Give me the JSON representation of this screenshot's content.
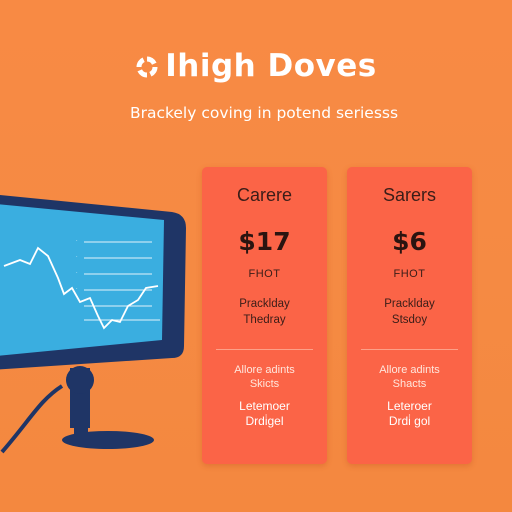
{
  "header": {
    "logo_icon": "ring-logo-icon",
    "title": "Ihigh Doves",
    "tagline": "Brackely coving in potend seriesss"
  },
  "plans": [
    {
      "name": "Carere",
      "price": "$17",
      "period": "FHOT",
      "features_a": [
        "Pracklday",
        "Thedray"
      ],
      "features_b": [
        "Allore adints",
        "Skicts"
      ],
      "features_c": [
        "Letemoer",
        "Drdi̇gel"
      ]
    },
    {
      "name": "Sarers",
      "price": "$6",
      "period": "FHOT",
      "features_a": [
        "Pracklday",
        "Stsdoy"
      ],
      "features_b": [
        "Allore adints",
        "Shacts"
      ],
      "features_c": [
        "Leteroer",
        "Drdi̇ gol"
      ]
    }
  ],
  "illustration": {
    "icon": "computer-monitor-icon",
    "colors": {
      "frame": "#1f3566",
      "screen": "#3aaee0",
      "chart_line": "#ffffff"
    }
  }
}
